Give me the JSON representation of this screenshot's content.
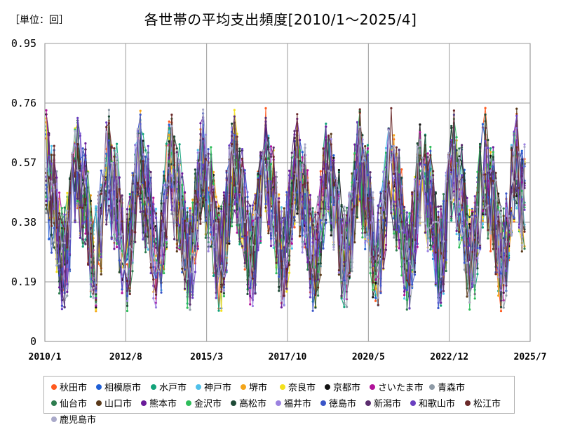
{
  "header": {
    "unit": "［単位：回］",
    "title": "各世帯の平均支出頻度[2010/1～2025/4]"
  },
  "chart_data": {
    "type": "line",
    "title": "各世帯の平均支出頻度[2010/1～2025/4]",
    "unit": "［単位：回］",
    "xlabel": "",
    "ylabel": "",
    "x_start": "2010/1",
    "x_end": "2025/4",
    "x_ticks": [
      "2010/1",
      "2012/8",
      "2015/3",
      "2017/10",
      "2020/5",
      "2022/12",
      "2025/7"
    ],
    "y_ticks": [
      "0",
      "0.19",
      "0.38",
      "0.57",
      "0.76",
      "0.95"
    ],
    "ylim": [
      0,
      0.95
    ],
    "grid": true,
    "legend_position": "bottom",
    "series": [
      {
        "name": "秋田市",
        "color": "#ff5a1f"
      },
      {
        "name": "相模原市",
        "color": "#1f5fd6"
      },
      {
        "name": "水戸市",
        "color": "#12a37a"
      },
      {
        "name": "神戸市",
        "color": "#4fc0ea"
      },
      {
        "name": "堺市",
        "color": "#f3a51b"
      },
      {
        "name": "奈良市",
        "color": "#f4e11c"
      },
      {
        "name": "京都市",
        "color": "#111111"
      },
      {
        "name": "さいたま市",
        "color": "#b1129a"
      },
      {
        "name": "青森市",
        "color": "#8e9aa6"
      },
      {
        "name": "仙台市",
        "color": "#2e7d4f"
      },
      {
        "name": "山口市",
        "color": "#5a3a1a"
      },
      {
        "name": "熊本市",
        "color": "#6a1b9a"
      },
      {
        "name": "金沢市",
        "color": "#2ebd5a"
      },
      {
        "name": "高松市",
        "color": "#1e4a36"
      },
      {
        "name": "福井市",
        "color": "#9b82e0"
      },
      {
        "name": "徳島市",
        "color": "#3a55c8"
      },
      {
        "name": "新潟市",
        "color": "#5b2d6e"
      },
      {
        "name": "和歌山市",
        "color": "#6a3fc0"
      },
      {
        "name": "松江市",
        "color": "#6b2a2a"
      },
      {
        "name": "鹿児島市",
        "color": "#a9a9c9"
      }
    ]
  }
}
